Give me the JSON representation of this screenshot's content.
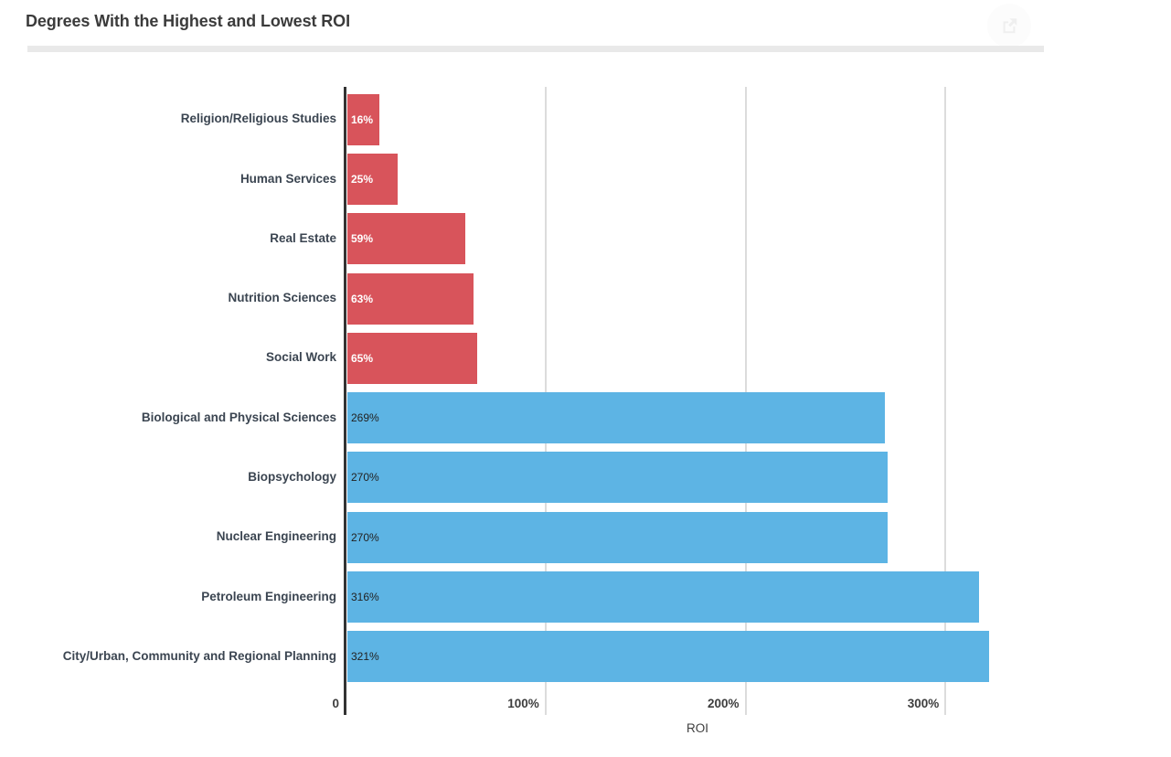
{
  "header": {
    "title": "Degrees With the Highest and Lowest ROI",
    "share_button": {
      "icon": "share-icon"
    }
  },
  "chart_data": {
    "type": "bar",
    "orientation": "horizontal",
    "title": "Degrees With the Highest and Lowest ROI",
    "xlabel": "ROI",
    "xlim": [
      0,
      352
    ],
    "grid": true,
    "legend": false,
    "x_ticks": [
      {
        "value": 0,
        "label": "0"
      },
      {
        "value": 100,
        "label": "100%"
      },
      {
        "value": 200,
        "label": "200%"
      },
      {
        "value": 300,
        "label": "300%"
      }
    ],
    "colors": {
      "low_roi": "#d8545b",
      "high_roi": "#5db4e4"
    },
    "categories": [
      "Religion/Religious Studies",
      "Human Services",
      "Real Estate",
      "Nutrition Sciences",
      "Social Work",
      "Biological and Physical Sciences",
      "Biopsychology",
      "Nuclear Engineering",
      "Petroleum Engineering",
      "City/Urban, Community and Regional Planning"
    ],
    "values": [
      16,
      25,
      59,
      63,
      65,
      269,
      270,
      270,
      316,
      321
    ],
    "bars": [
      {
        "category": "Religion/Religious Studies",
        "value": 16,
        "label": "16%",
        "group": "low_roi",
        "color": "#d8545b",
        "label_color": "#ffffff",
        "label_bold": true
      },
      {
        "category": "Human Services",
        "value": 25,
        "label": "25%",
        "group": "low_roi",
        "color": "#d8545b",
        "label_color": "#ffffff",
        "label_bold": true
      },
      {
        "category": "Real Estate",
        "value": 59,
        "label": "59%",
        "group": "low_roi",
        "color": "#d8545b",
        "label_color": "#ffffff",
        "label_bold": true
      },
      {
        "category": "Nutrition Sciences",
        "value": 63,
        "label": "63%",
        "group": "low_roi",
        "color": "#d8545b",
        "label_color": "#ffffff",
        "label_bold": true
      },
      {
        "category": "Social Work",
        "value": 65,
        "label": "65%",
        "group": "low_roi",
        "color": "#d8545b",
        "label_color": "#ffffff",
        "label_bold": true
      },
      {
        "category": "Biological and Physical Sciences",
        "value": 269,
        "label": "269%",
        "group": "high_roi",
        "color": "#5db4e4",
        "label_color": "#222222",
        "label_bold": false
      },
      {
        "category": "Biopsychology",
        "value": 270,
        "label": "270%",
        "group": "high_roi",
        "color": "#5db4e4",
        "label_color": "#222222",
        "label_bold": false
      },
      {
        "category": "Nuclear Engineering",
        "value": 270,
        "label": "270%",
        "group": "high_roi",
        "color": "#5db4e4",
        "label_color": "#222222",
        "label_bold": false
      },
      {
        "category": "Petroleum Engineering",
        "value": 316,
        "label": "316%",
        "group": "high_roi",
        "color": "#5db4e4",
        "label_color": "#222222",
        "label_bold": false
      },
      {
        "category": "City/Urban, Community and Regional Planning",
        "value": 321,
        "label": "321%",
        "group": "high_roi",
        "color": "#5db4e4",
        "label_color": "#222222",
        "label_bold": false
      }
    ]
  }
}
